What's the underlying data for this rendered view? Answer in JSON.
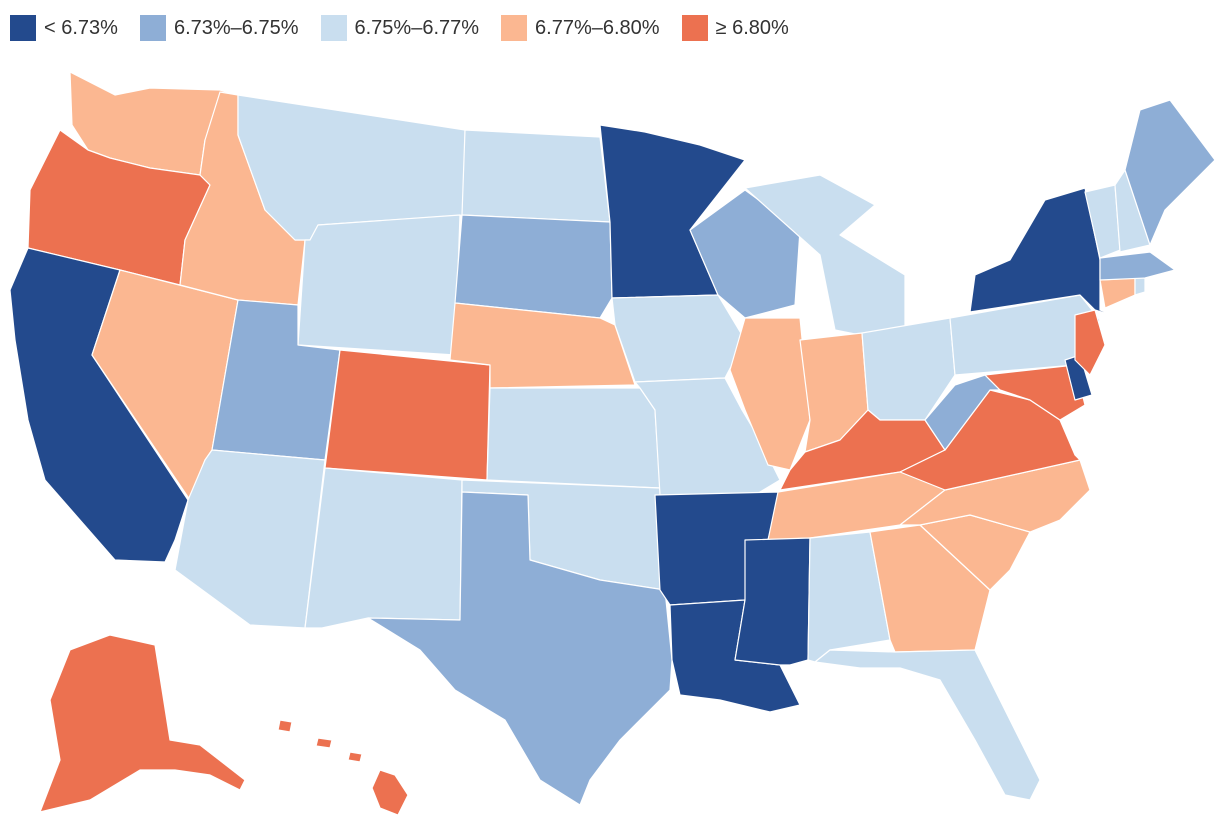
{
  "legend": [
    {
      "label": "< 6.73%",
      "color": "#234a8d"
    },
    {
      "label": "6.73%–6.75%",
      "color": "#8eaed6"
    },
    {
      "label": "6.75%–6.77%",
      "color": "#c9deef"
    },
    {
      "label": "6.77%–6.80%",
      "color": "#fbb791"
    },
    {
      "label": "≥ 6.80%",
      "color": "#ec7150"
    }
  ],
  "states": [
    {
      "id": "WA",
      "bin": 3
    },
    {
      "id": "OR",
      "bin": 4
    },
    {
      "id": "CA",
      "bin": 0
    },
    {
      "id": "NV",
      "bin": 3
    },
    {
      "id": "ID",
      "bin": 3
    },
    {
      "id": "MT",
      "bin": 2
    },
    {
      "id": "WY",
      "bin": 2
    },
    {
      "id": "UT",
      "bin": 1
    },
    {
      "id": "AZ",
      "bin": 2
    },
    {
      "id": "CO",
      "bin": 4
    },
    {
      "id": "NM",
      "bin": 2
    },
    {
      "id": "ND",
      "bin": 2
    },
    {
      "id": "SD",
      "bin": 1
    },
    {
      "id": "NE",
      "bin": 3
    },
    {
      "id": "KS",
      "bin": 2
    },
    {
      "id": "OK",
      "bin": 2
    },
    {
      "id": "TX",
      "bin": 1
    },
    {
      "id": "MN",
      "bin": 0
    },
    {
      "id": "IA",
      "bin": 2
    },
    {
      "id": "MO",
      "bin": 2
    },
    {
      "id": "AR",
      "bin": 0
    },
    {
      "id": "LA",
      "bin": 0
    },
    {
      "id": "WI",
      "bin": 1
    },
    {
      "id": "IL",
      "bin": 3
    },
    {
      "id": "MI",
      "bin": 2
    },
    {
      "id": "IN",
      "bin": 3
    },
    {
      "id": "OH",
      "bin": 2
    },
    {
      "id": "KY",
      "bin": 4
    },
    {
      "id": "TN",
      "bin": 3
    },
    {
      "id": "MS",
      "bin": 0
    },
    {
      "id": "AL",
      "bin": 2
    },
    {
      "id": "GA",
      "bin": 3
    },
    {
      "id": "FL",
      "bin": 2
    },
    {
      "id": "SC",
      "bin": 3
    },
    {
      "id": "NC",
      "bin": 3
    },
    {
      "id": "VA",
      "bin": 4
    },
    {
      "id": "WV",
      "bin": 1
    },
    {
      "id": "MD",
      "bin": 4
    },
    {
      "id": "DE",
      "bin": 0
    },
    {
      "id": "PA",
      "bin": 2
    },
    {
      "id": "NJ",
      "bin": 4
    },
    {
      "id": "NY",
      "bin": 0
    },
    {
      "id": "CT",
      "bin": 3
    },
    {
      "id": "RI",
      "bin": 2
    },
    {
      "id": "MA",
      "bin": 1
    },
    {
      "id": "VT",
      "bin": 2
    },
    {
      "id": "NH",
      "bin": 2
    },
    {
      "id": "ME",
      "bin": 1
    },
    {
      "id": "AK",
      "bin": 4
    },
    {
      "id": "HI",
      "bin": 4
    }
  ]
}
